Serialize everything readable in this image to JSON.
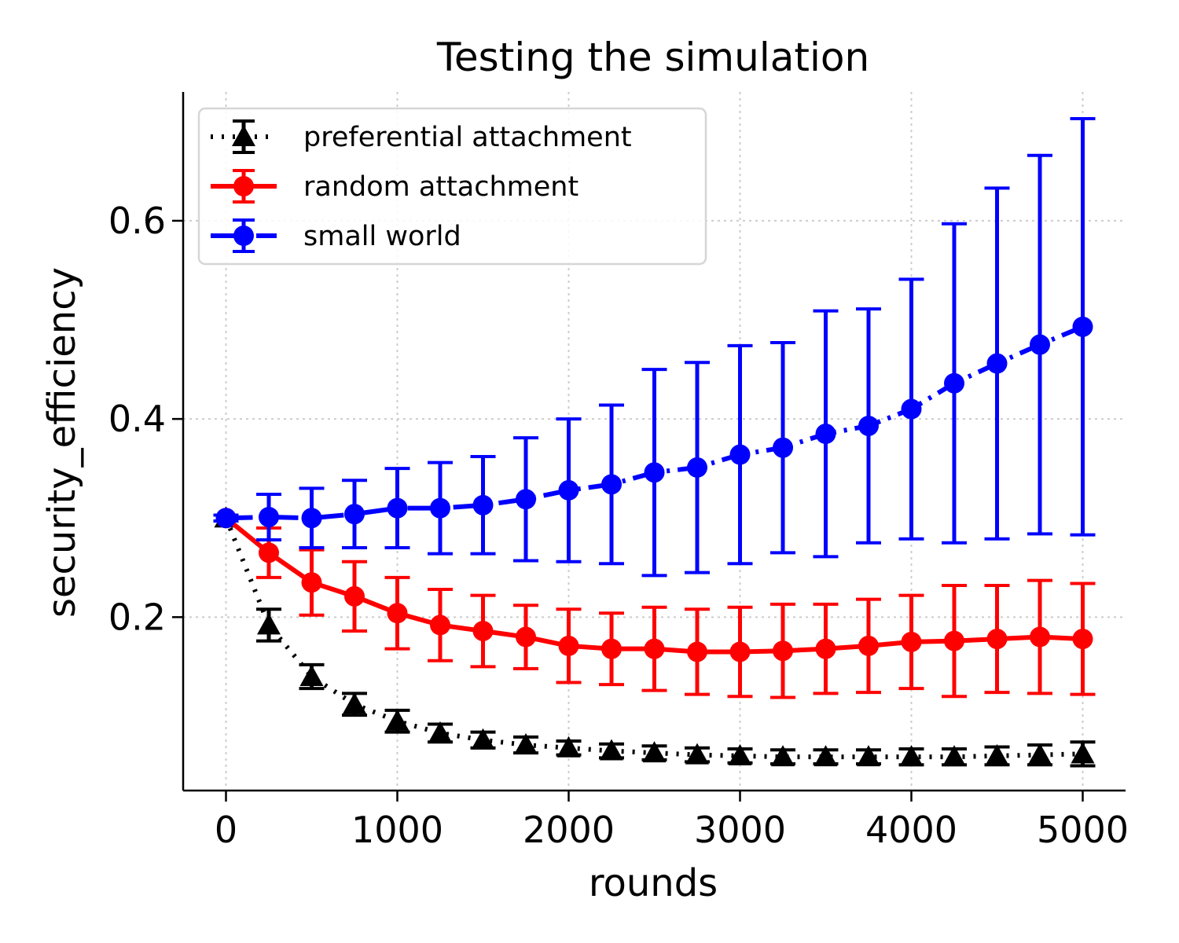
{
  "chart_data": {
    "type": "line",
    "title": "Testing the simulation",
    "xlabel": "rounds",
    "ylabel": "security_efficiency",
    "xlim": [
      -250,
      5250
    ],
    "ylim": [
      0.025,
      0.73
    ],
    "xticks": [
      0,
      1000,
      2000,
      3000,
      4000,
      5000
    ],
    "yticks": [
      0.2,
      0.4,
      0.6
    ],
    "ytick_labels": [
      "0.2",
      "0.4",
      "0.6"
    ],
    "grid": true,
    "legend_position": "top-left",
    "x": [
      0,
      250,
      500,
      750,
      1000,
      1250,
      1500,
      1750,
      2000,
      2250,
      2500,
      2750,
      3000,
      3250,
      3500,
      3750,
      4000,
      4250,
      4500,
      4750,
      5000
    ],
    "series": [
      {
        "name": "preferential attachment",
        "color": "#000000",
        "linestyle": "dotted",
        "marker": "triangle",
        "values": [
          0.3,
          0.192,
          0.14,
          0.112,
          0.095,
          0.083,
          0.076,
          0.071,
          0.068,
          0.065,
          0.063,
          0.061,
          0.06,
          0.059,
          0.059,
          0.059,
          0.059,
          0.059,
          0.06,
          0.061,
          0.062
        ],
        "errors": [
          0.003,
          0.016,
          0.012,
          0.011,
          0.011,
          0.009,
          0.008,
          0.008,
          0.007,
          0.007,
          0.007,
          0.007,
          0.007,
          0.007,
          0.007,
          0.007,
          0.008,
          0.008,
          0.009,
          0.01,
          0.012
        ]
      },
      {
        "name": "random attachment",
        "color": "#ff0000",
        "linestyle": "solid",
        "marker": "circle",
        "values": [
          0.3,
          0.265,
          0.235,
          0.221,
          0.204,
          0.192,
          0.186,
          0.18,
          0.171,
          0.168,
          0.168,
          0.165,
          0.165,
          0.166,
          0.168,
          0.171,
          0.175,
          0.176,
          0.178,
          0.18,
          0.178
        ],
        "errors": [
          0.003,
          0.025,
          0.033,
          0.035,
          0.036,
          0.036,
          0.036,
          0.032,
          0.037,
          0.036,
          0.042,
          0.043,
          0.045,
          0.047,
          0.045,
          0.047,
          0.047,
          0.056,
          0.054,
          0.057,
          0.056
        ]
      },
      {
        "name": "small world",
        "color": "#0000ff",
        "linestyle": "dashdot",
        "marker": "circle",
        "values": [
          0.3,
          0.301,
          0.3,
          0.304,
          0.31,
          0.31,
          0.313,
          0.319,
          0.328,
          0.334,
          0.346,
          0.351,
          0.364,
          0.371,
          0.385,
          0.393,
          0.41,
          0.436,
          0.456,
          0.475,
          0.493
        ],
        "errors": [
          0.003,
          0.023,
          0.03,
          0.034,
          0.04,
          0.046,
          0.049,
          0.062,
          0.072,
          0.08,
          0.104,
          0.106,
          0.11,
          0.106,
          0.124,
          0.118,
          0.131,
          0.161,
          0.177,
          0.191,
          0.21
        ]
      }
    ]
  }
}
